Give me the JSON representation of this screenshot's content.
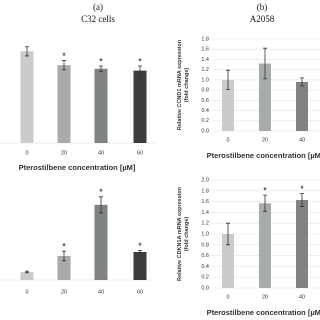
{
  "chart_data": [
    {
      "type": "bar",
      "panel": "(a)",
      "title": "C32 cells",
      "xlabel": "Pterostilbene concentration [µM]",
      "categories": [
        "0",
        "20",
        "40",
        "60"
      ],
      "values": [
        1.0,
        0.85,
        0.81,
        0.79
      ],
      "errors": [
        0.05,
        0.05,
        0.03,
        0.05
      ],
      "significance": [
        null,
        "*",
        "*",
        "*"
      ],
      "colors": [
        "#c9cccb",
        "#a7abaa",
        "#7f8382",
        "#3b3b3b"
      ],
      "ylim": [
        0,
        1.2
      ],
      "grid": true
    },
    {
      "type": "bar",
      "panel": "(b)",
      "title": "A2058",
      "xlabel": "Pterostilbene concentration [µM]",
      "ylabel": [
        "Relative CCND1 mRNA expression",
        "(fold change)"
      ],
      "categories": [
        "0",
        "20",
        "40"
      ],
      "values": [
        1.0,
        1.32,
        0.96
      ],
      "errors": [
        0.19,
        0.3,
        0.08
      ],
      "significance": [
        null,
        null,
        null
      ],
      "colors": [
        "#c9cccb",
        "#a7abaa",
        "#7f8382"
      ],
      "ylim": [
        0,
        1.8
      ],
      "yticks": [
        {
          "value": 0,
          "label": "0.0"
        },
        0.2,
        0.4,
        0.6,
        0.8,
        {
          "value": 1,
          "label": "1.0"
        },
        1.2,
        1.4,
        1.6,
        1.8
      ],
      "grid": true
    },
    {
      "type": "bar",
      "categories": [
        "0",
        "20",
        "40",
        "60"
      ],
      "values": [
        1.0,
        3.0,
        9.4,
        3.5
      ],
      "errors": [
        0.1,
        0.6,
        1.0,
        0.2
      ],
      "significance": [
        null,
        "*",
        "*",
        "*"
      ],
      "colors": [
        "#c9cccb",
        "#a7abaa",
        "#7f8382",
        "#3b3b3b"
      ],
      "ylim": [
        0,
        12
      ],
      "grid": true
    },
    {
      "type": "bar",
      "xlabel": "Pterostilbene concentration [µM]",
      "ylabel": [
        "Relative CDKN1A mRNA expression",
        "(fold change)"
      ],
      "categories": [
        "0",
        "20",
        "40"
      ],
      "values": [
        1.0,
        1.57,
        1.63
      ],
      "errors": [
        0.2,
        0.15,
        0.12
      ],
      "significance": [
        null,
        "*",
        "*"
      ],
      "colors": [
        "#c9cccb",
        "#a7abaa",
        "#7f8382"
      ],
      "ylim": [
        0,
        2.0
      ],
      "yticks": [
        {
          "value": 0,
          "label": "0.0"
        },
        0.2,
        0.4,
        0.6,
        0.8,
        {
          "value": 1,
          "label": "1.0"
        },
        1.2,
        1.4,
        1.6,
        1.8,
        {
          "value": 2,
          "label": "2.0"
        }
      ],
      "grid": true
    }
  ]
}
